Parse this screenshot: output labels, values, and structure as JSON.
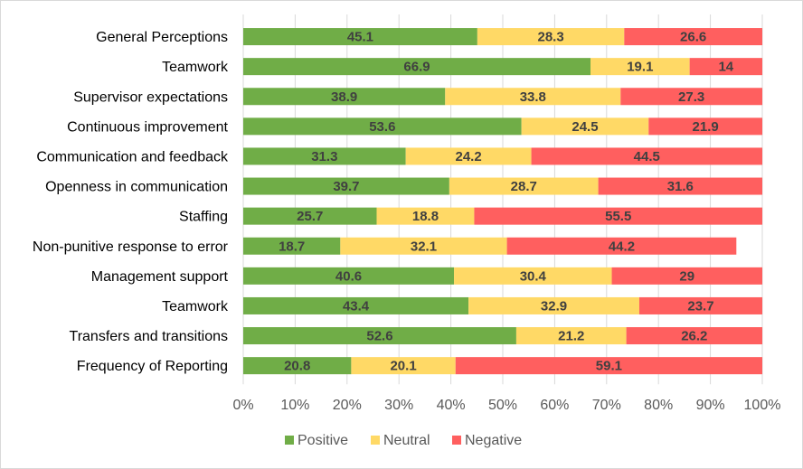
{
  "chart_data": {
    "type": "bar",
    "orientation": "horizontal",
    "stacked": "percent",
    "categories": [
      "General Perceptions",
      "Teamwork",
      "Supervisor expectations",
      "Continuous improvement",
      "Communication and feedback",
      "Openness in communication",
      "Staffing",
      "Non-punitive response to error",
      "Management support",
      "Teamwork",
      "Transfers and transitions",
      "Frequency of Reporting"
    ],
    "series": [
      {
        "name": "Positive",
        "color": "#70ad47",
        "values": [
          45.1,
          66.9,
          38.9,
          53.6,
          31.3,
          39.7,
          25.7,
          18.7,
          40.6,
          43.4,
          52.6,
          20.8
        ]
      },
      {
        "name": "Neutral",
        "color": "#ffd966",
        "values": [
          28.3,
          19.1,
          33.8,
          24.5,
          24.2,
          28.7,
          18.8,
          32.1,
          30.4,
          32.9,
          21.2,
          20.1
        ]
      },
      {
        "name": "Negative",
        "color": "#ff5f5f",
        "values": [
          26.6,
          14,
          27.3,
          21.9,
          44.5,
          31.6,
          55.5,
          44.2,
          29,
          23.7,
          26.2,
          59.1
        ]
      }
    ],
    "xlim": [
      0,
      100
    ],
    "xticks": [
      "0%",
      "10%",
      "20%",
      "30%",
      "40%",
      "50%",
      "60%",
      "70%",
      "80%",
      "90%",
      "100%"
    ],
    "grid": true,
    "legend_position": "bottom",
    "title": "",
    "xlabel": "",
    "ylabel": ""
  }
}
